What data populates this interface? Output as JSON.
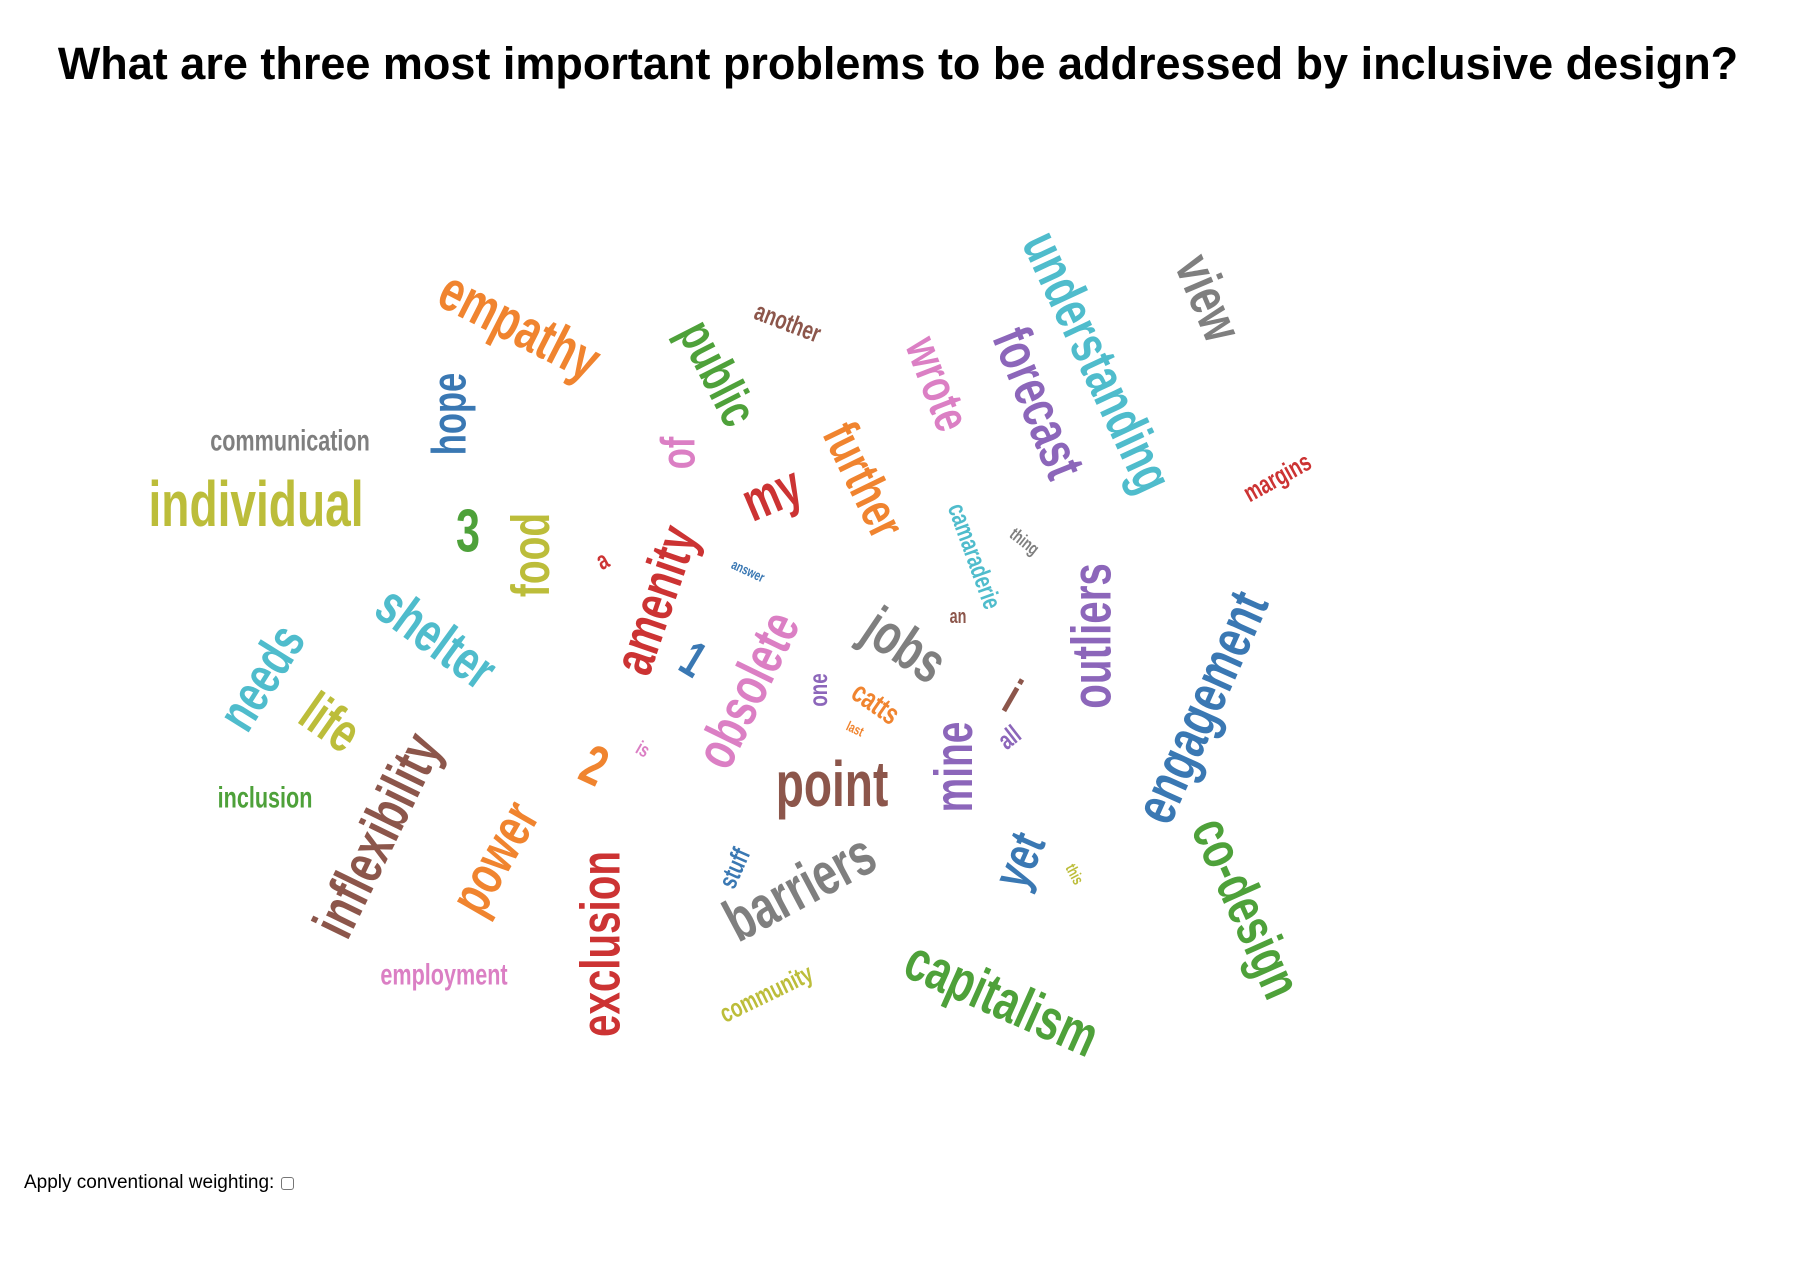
{
  "title": "What are three most important problems to be addressed by inclusive design?",
  "control": {
    "label": "Apply conventional weighting:",
    "checked": false
  },
  "palette": {
    "teal": "#4fbccc",
    "gray": "#7f7f7f",
    "purple": "#8c66ba",
    "pink": "#db7fc4",
    "green": "#4ea13a",
    "brown": "#8c564b",
    "orange": "#f0842f",
    "blue": "#3a78b3",
    "red": "#cc3333",
    "olive": "#bcbd3a"
  },
  "words": [
    {
      "text": "understanding",
      "color": "teal"
    },
    {
      "text": "view",
      "color": "gray"
    },
    {
      "text": "forecast",
      "color": "purple"
    },
    {
      "text": "wrote",
      "color": "pink"
    },
    {
      "text": "another",
      "color": "brown"
    },
    {
      "text": "empathy",
      "color": "orange"
    },
    {
      "text": "public",
      "color": "green"
    },
    {
      "text": "further",
      "color": "orange"
    },
    {
      "text": "hope",
      "color": "blue"
    },
    {
      "text": "communication",
      "color": "gray"
    },
    {
      "text": "of",
      "color": "pink"
    },
    {
      "text": "margins",
      "color": "red"
    },
    {
      "text": "individual",
      "color": "olive"
    },
    {
      "text": "my",
      "color": "red"
    },
    {
      "text": "camaraderie",
      "color": "teal"
    },
    {
      "text": "3",
      "color": "green"
    },
    {
      "text": "food",
      "color": "olive"
    },
    {
      "text": "thing",
      "color": "gray"
    },
    {
      "text": "a",
      "color": "red"
    },
    {
      "text": "amenity",
      "color": "red"
    },
    {
      "text": "answer",
      "color": "blue"
    },
    {
      "text": "shelter",
      "color": "teal"
    },
    {
      "text": "outliers",
      "color": "purple"
    },
    {
      "text": "engagement",
      "color": "blue"
    },
    {
      "text": "jobs",
      "color": "gray"
    },
    {
      "text": "an",
      "color": "brown"
    },
    {
      "text": "needs",
      "color": "teal"
    },
    {
      "text": "1",
      "color": "blue"
    },
    {
      "text": "obsolete",
      "color": "pink"
    },
    {
      "text": "i",
      "color": "brown"
    },
    {
      "text": "catts",
      "color": "orange"
    },
    {
      "text": "one",
      "color": "purple"
    },
    {
      "text": "life",
      "color": "olive"
    },
    {
      "text": "inflexibility",
      "color": "brown"
    },
    {
      "text": "last",
      "color": "orange"
    },
    {
      "text": "all",
      "color": "purple"
    },
    {
      "text": "mine",
      "color": "purple"
    },
    {
      "text": "2",
      "color": "orange"
    },
    {
      "text": "is",
      "color": "pink"
    },
    {
      "text": "point",
      "color": "brown"
    },
    {
      "text": "inclusion",
      "color": "green"
    },
    {
      "text": "power",
      "color": "orange"
    },
    {
      "text": "exclusion",
      "color": "red"
    },
    {
      "text": "co-design",
      "color": "green"
    },
    {
      "text": "yet",
      "color": "blue"
    },
    {
      "text": "this",
      "color": "olive"
    },
    {
      "text": "stuff",
      "color": "blue"
    },
    {
      "text": "barriers",
      "color": "gray"
    },
    {
      "text": "capitalism",
      "color": "green"
    },
    {
      "text": "employment",
      "color": "pink"
    },
    {
      "text": "community",
      "color": "olive"
    }
  ]
}
